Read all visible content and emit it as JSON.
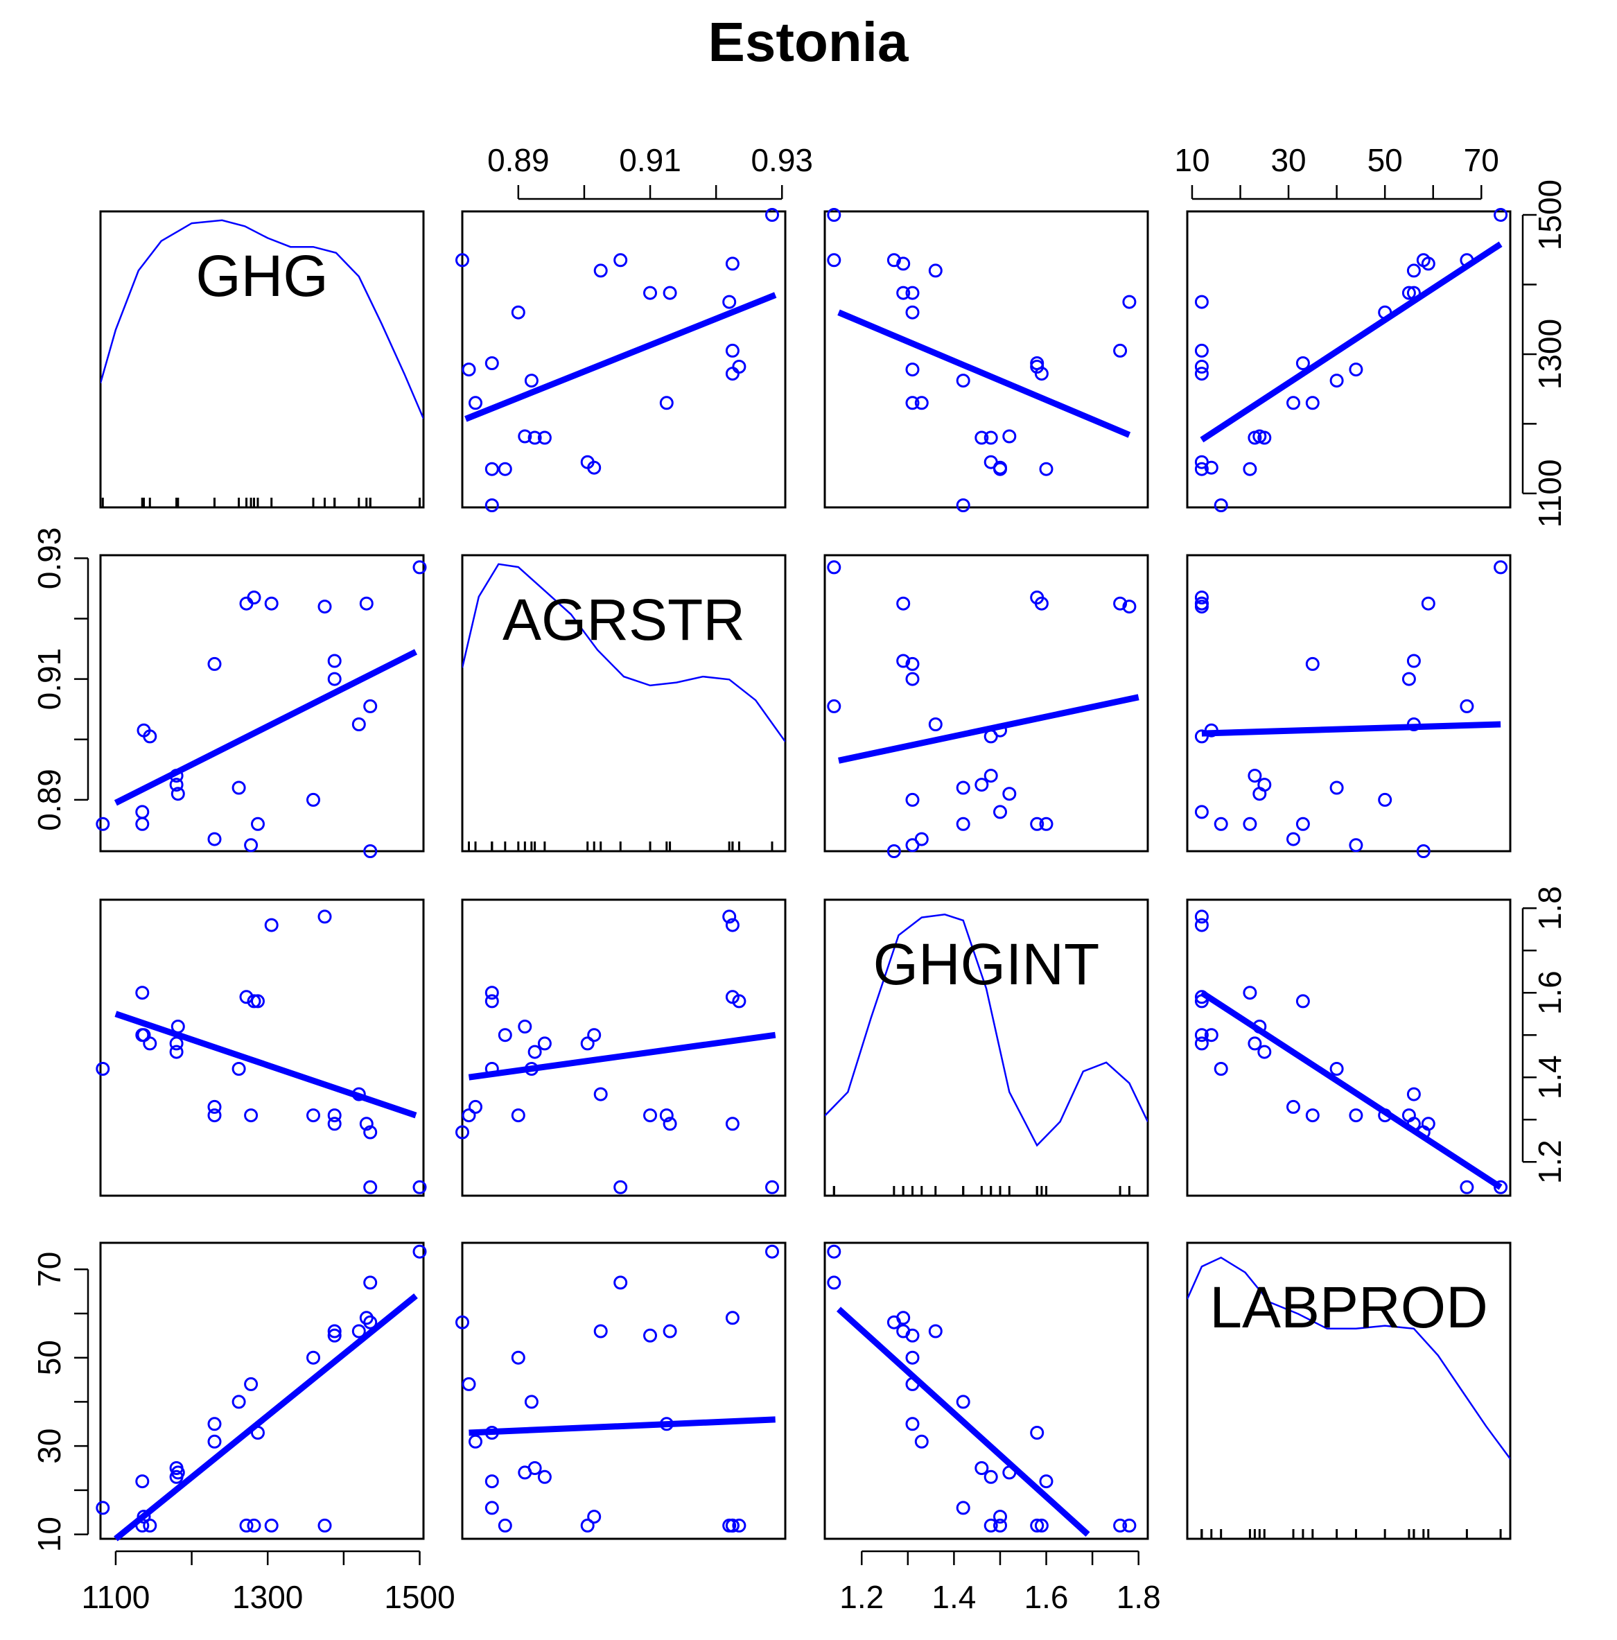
{
  "chart_data": {
    "type": "scatter-matrix",
    "title": "Estonia",
    "color": "#0000ff",
    "frame_color": "#000000",
    "variables": [
      {
        "name": "GHG",
        "range": [
          1080,
          1505
        ],
        "ticks": [
          1100,
          1300,
          1500
        ],
        "tick_labels": [
          "1100",
          "1300",
          "1500"
        ],
        "minor_ticks": [
          1100,
          1200,
          1300,
          1400,
          1500
        ]
      },
      {
        "name": "AGRSTR",
        "range": [
          0.8815,
          0.9305
        ],
        "ticks": [
          0.89,
          0.91,
          0.93
        ],
        "tick_labels": [
          "0.89",
          "0.91",
          "0.93"
        ],
        "minor_ticks": [
          0.89,
          0.9,
          0.91,
          0.92,
          0.93
        ]
      },
      {
        "name": "GHGINT",
        "range": [
          1.12,
          1.82
        ],
        "ticks": [
          1.2,
          1.4,
          1.6,
          1.8
        ],
        "tick_labels": [
          "1.2",
          "1.4",
          "1.6",
          "1.8"
        ],
        "minor_ticks": [
          1.2,
          1.3,
          1.4,
          1.5,
          1.6,
          1.7,
          1.8
        ]
      },
      {
        "name": "LABPROD",
        "range": [
          9,
          76
        ],
        "ticks": [
          10,
          30,
          50,
          70
        ],
        "tick_labels": [
          "10",
          "30",
          "50",
          "70"
        ],
        "minor_ticks": [
          10,
          20,
          30,
          40,
          50,
          60,
          70
        ]
      }
    ],
    "observations": [
      {
        "GHG": 1500,
        "AGRSTR": 0.9285,
        "GHGINT": 1.14,
        "LABPROD": 74
      },
      {
        "GHG": 1435,
        "AGRSTR": 0.9055,
        "GHGINT": 1.14,
        "LABPROD": 67
      },
      {
        "GHG": 1435,
        "AGRSTR": 0.8815,
        "GHGINT": 1.27,
        "LABPROD": 58
      },
      {
        "GHG": 1430,
        "AGRSTR": 0.9225,
        "GHGINT": 1.29,
        "LABPROD": 59
      },
      {
        "GHG": 1420,
        "AGRSTR": 0.9025,
        "GHGINT": 1.36,
        "LABPROD": 56
      },
      {
        "GHG": 1388,
        "AGRSTR": 0.91,
        "GHGINT": 1.31,
        "LABPROD": 55
      },
      {
        "GHG": 1388,
        "AGRSTR": 0.913,
        "GHGINT": 1.29,
        "LABPROD": 56
      },
      {
        "GHG": 1375,
        "AGRSTR": 0.922,
        "GHGINT": 1.78,
        "LABPROD": 12
      },
      {
        "GHG": 1360,
        "AGRSTR": 0.89,
        "GHGINT": 1.31,
        "LABPROD": 50
      },
      {
        "GHG": 1305,
        "AGRSTR": 0.9225,
        "GHGINT": 1.76,
        "LABPROD": 12
      },
      {
        "GHG": 1287,
        "AGRSTR": 0.886,
        "GHGINT": 1.58,
        "LABPROD": 33
      },
      {
        "GHG": 1282,
        "AGRSTR": 0.9235,
        "GHGINT": 1.58,
        "LABPROD": 12
      },
      {
        "GHG": 1278,
        "AGRSTR": 0.8825,
        "GHGINT": 1.31,
        "LABPROD": 44
      },
      {
        "GHG": 1272,
        "AGRSTR": 0.9225,
        "GHGINT": 1.59,
        "LABPROD": 12
      },
      {
        "GHG": 1262,
        "AGRSTR": 0.892,
        "GHGINT": 1.42,
        "LABPROD": 40
      },
      {
        "GHG": 1230,
        "AGRSTR": 0.9125,
        "GHGINT": 1.31,
        "LABPROD": 35
      },
      {
        "GHG": 1230,
        "AGRSTR": 0.8835,
        "GHGINT": 1.33,
        "LABPROD": 31
      },
      {
        "GHG": 1182,
        "AGRSTR": 0.891,
        "GHGINT": 1.52,
        "LABPROD": 24
      },
      {
        "GHG": 1180,
        "AGRSTR": 0.894,
        "GHGINT": 1.48,
        "LABPROD": 23
      },
      {
        "GHG": 1180,
        "AGRSTR": 0.8925,
        "GHGINT": 1.46,
        "LABPROD": 25
      },
      {
        "GHG": 1145,
        "AGRSTR": 0.9005,
        "GHGINT": 1.48,
        "LABPROD": 12
      },
      {
        "GHG": 1137,
        "AGRSTR": 0.9015,
        "GHGINT": 1.5,
        "LABPROD": 14
      },
      {
        "GHG": 1135,
        "AGRSTR": 0.886,
        "GHGINT": 1.6,
        "LABPROD": 22
      },
      {
        "GHG": 1135,
        "AGRSTR": 0.888,
        "GHGINT": 1.5,
        "LABPROD": 12
      },
      {
        "GHG": 1083,
        "AGRSTR": 0.886,
        "GHGINT": 1.42,
        "LABPROD": 16
      }
    ],
    "fit_lines": {
      "GHG~AGRSTR": [
        [
          0.882,
          1207
        ],
        [
          0.929,
          1385
        ]
      ],
      "GHG~GHGINT": [
        [
          1.15,
          1360
        ],
        [
          1.78,
          1184
        ]
      ],
      "GHG~LABPROD": [
        [
          12,
          1177
        ],
        [
          74,
          1458
        ]
      ],
      "AGRSTR~GHG": [
        [
          1100,
          0.8895
        ],
        [
          1495,
          0.9145
        ]
      ],
      "AGRSTR~GHGINT": [
        [
          1.15,
          0.8965
        ],
        [
          1.8,
          0.907
        ]
      ],
      "AGRSTR~LABPROD": [
        [
          12,
          0.901
        ],
        [
          74,
          0.9025
        ]
      ],
      "GHGINT~GHG": [
        [
          1100,
          1.55
        ],
        [
          1495,
          1.31
        ]
      ],
      "GHGINT~AGRSTR": [
        [
          0.8825,
          1.4
        ],
        [
          0.929,
          1.5
        ]
      ],
      "GHGINT~LABPROD": [
        [
          12,
          1.6
        ],
        [
          74,
          1.14
        ]
      ],
      "LABPROD~GHG": [
        [
          1100,
          9
        ],
        [
          1495,
          64
        ]
      ],
      "LABPROD~AGRSTR": [
        [
          0.8825,
          33
        ],
        [
          0.929,
          36
        ]
      ],
      "LABPROD~GHGINT": [
        [
          1.15,
          61
        ],
        [
          1.69,
          10
        ]
      ]
    },
    "density_curves": {
      "GHG": [
        [
          1080,
          0.42
        ],
        [
          1100,
          0.6
        ],
        [
          1130,
          0.8
        ],
        [
          1160,
          0.9
        ],
        [
          1200,
          0.96
        ],
        [
          1240,
          0.97
        ],
        [
          1270,
          0.95
        ],
        [
          1300,
          0.91
        ],
        [
          1330,
          0.88
        ],
        [
          1360,
          0.88
        ],
        [
          1390,
          0.86
        ],
        [
          1420,
          0.78
        ],
        [
          1450,
          0.62
        ],
        [
          1480,
          0.45
        ],
        [
          1505,
          0.3
        ]
      ],
      "AGRSTR": [
        [
          0.8815,
          0.62
        ],
        [
          0.884,
          0.86
        ],
        [
          0.887,
          0.97
        ],
        [
          0.89,
          0.96
        ],
        [
          0.894,
          0.88
        ],
        [
          0.898,
          0.8
        ],
        [
          0.902,
          0.68
        ],
        [
          0.906,
          0.59
        ],
        [
          0.91,
          0.56
        ],
        [
          0.914,
          0.57
        ],
        [
          0.918,
          0.59
        ],
        [
          0.922,
          0.58
        ],
        [
          0.926,
          0.51
        ],
        [
          0.9305,
          0.37
        ]
      ],
      "GHGINT": [
        [
          1.12,
          0.27
        ],
        [
          1.17,
          0.35
        ],
        [
          1.22,
          0.6
        ],
        [
          1.28,
          0.88
        ],
        [
          1.33,
          0.94
        ],
        [
          1.38,
          0.95
        ],
        [
          1.42,
          0.93
        ],
        [
          1.47,
          0.7
        ],
        [
          1.52,
          0.35
        ],
        [
          1.58,
          0.17
        ],
        [
          1.63,
          0.25
        ],
        [
          1.68,
          0.42
        ],
        [
          1.73,
          0.45
        ],
        [
          1.78,
          0.38
        ],
        [
          1.82,
          0.25
        ]
      ],
      "LABPROD": [
        [
          9,
          0.81
        ],
        [
          12,
          0.92
        ],
        [
          16,
          0.95
        ],
        [
          21,
          0.9
        ],
        [
          26,
          0.8
        ],
        [
          32,
          0.76
        ],
        [
          38,
          0.71
        ],
        [
          44,
          0.71
        ],
        [
          50,
          0.72
        ],
        [
          56,
          0.71
        ],
        [
          61,
          0.62
        ],
        [
          66,
          0.5
        ],
        [
          71,
          0.38
        ],
        [
          76,
          0.27
        ]
      ]
    },
    "axes": {
      "top": [
        "AGRSTR",
        "LABPROD"
      ],
      "bottom": [
        "GHG",
        "GHGINT"
      ],
      "left": [
        "AGRSTR",
        "LABPROD"
      ],
      "right": [
        "GHG",
        "GHGINT"
      ]
    },
    "xlabel": "",
    "ylabel": ""
  }
}
